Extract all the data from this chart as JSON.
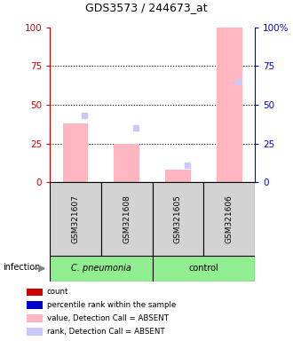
{
  "title": "GDS3573 / 244673_at",
  "samples": [
    "GSM321607",
    "GSM321608",
    "GSM321605",
    "GSM321606"
  ],
  "group_labels": [
    "C. pneumonia",
    "control"
  ],
  "group_sample_counts": [
    2,
    2
  ],
  "bar_color_absent": "#ffb6c1",
  "rank_color_absent": "#c8c8ff",
  "value_absent": [
    38,
    25,
    8,
    100
  ],
  "rank_absent": [
    43,
    35,
    11,
    65
  ],
  "ylim": [
    0,
    100
  ],
  "yticks": [
    0,
    25,
    50,
    75,
    100
  ],
  "left_axis_color": "#cc0000",
  "right_axis_color": "#0000cc",
  "dotted_lines": [
    25,
    50,
    75
  ],
  "sample_box_color": "#d3d3d3",
  "group_colors": [
    "#90ee90",
    "#90ee90"
  ],
  "legend_items": [
    {
      "label": "count",
      "color": "#cc0000"
    },
    {
      "label": "percentile rank within the sample",
      "color": "#0000cc"
    },
    {
      "label": "value, Detection Call = ABSENT",
      "color": "#ffb6c1"
    },
    {
      "label": "rank, Detection Call = ABSENT",
      "color": "#c8c8ff"
    }
  ],
  "infection_label": "infection",
  "figsize": [
    3.3,
    3.84
  ],
  "dpi": 100
}
